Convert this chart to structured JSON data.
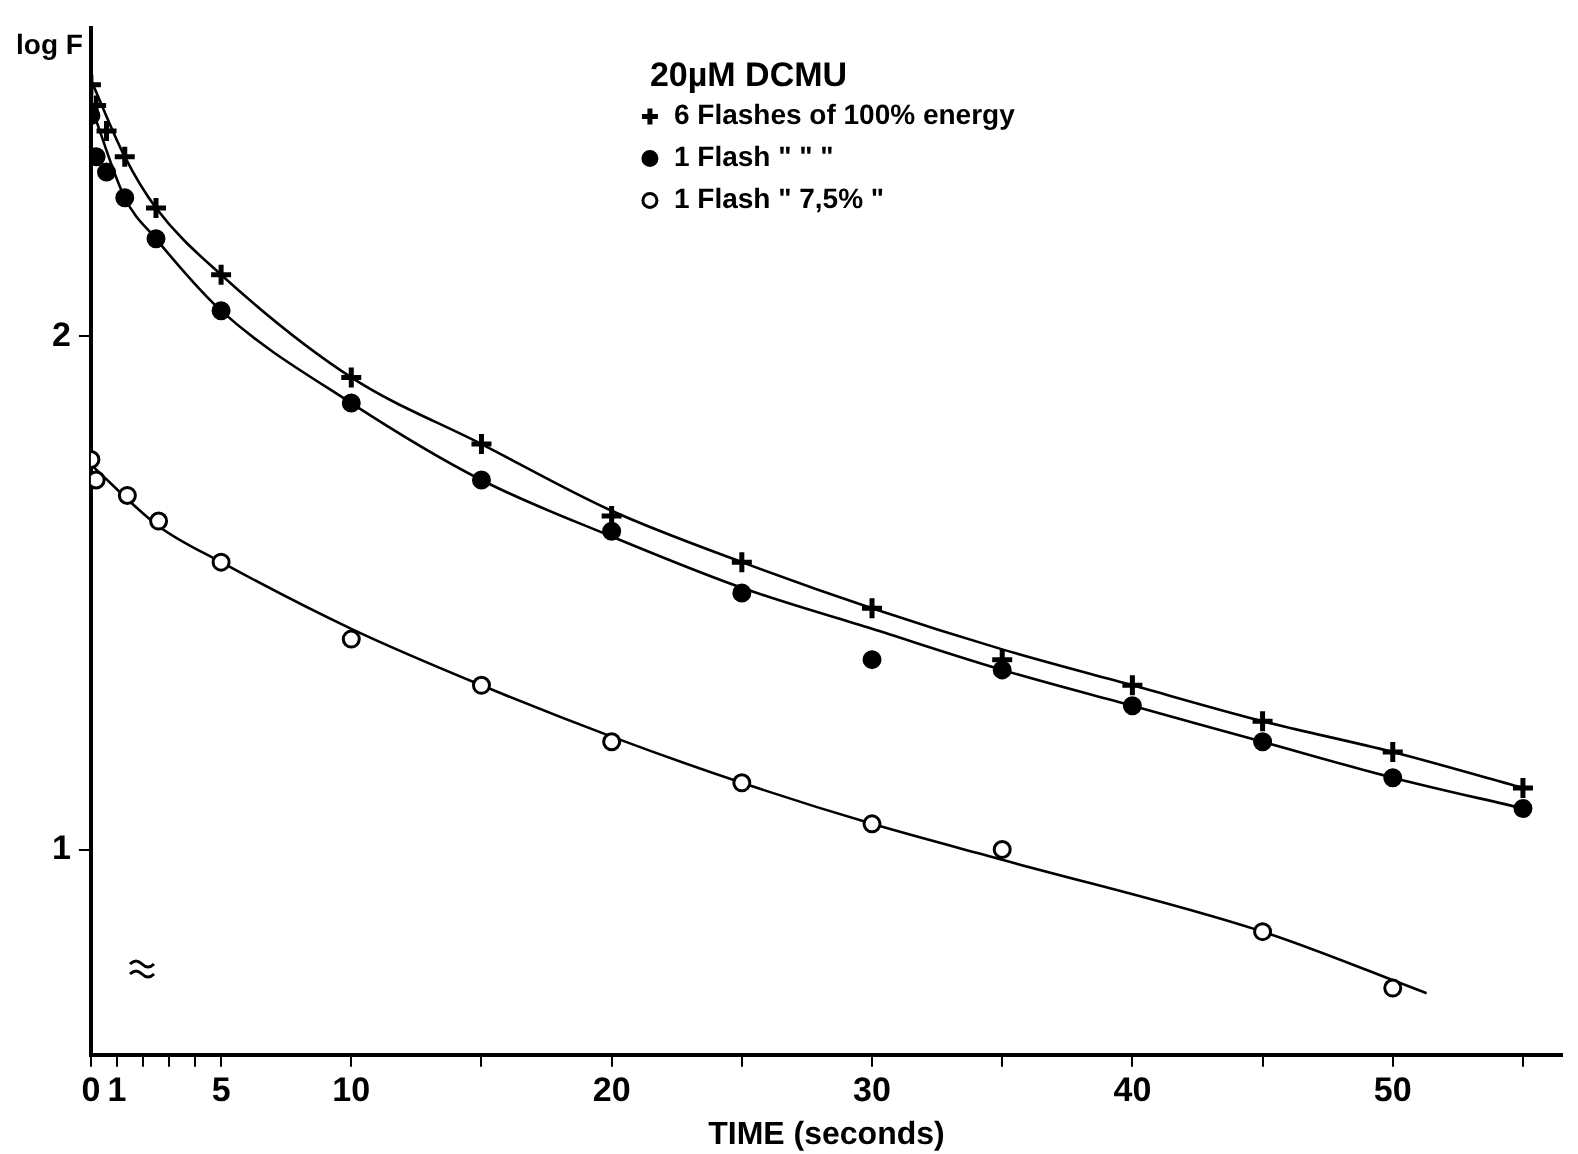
{
  "chart_data": {
    "type": "scatter",
    "xlabel": "TIME (seconds)",
    "ylabel": "log F",
    "legend_title": "20µM DCMU",
    "legend": "top right",
    "grid": false,
    "xlim": [
      0,
      56.5
    ],
    "xticks": [
      0,
      1,
      {
        "value": 2,
        "label": null
      },
      {
        "value": 3,
        "label": null
      },
      {
        "value": 4,
        "label": null
      },
      5,
      10,
      {
        "value": 15,
        "label": null
      },
      20,
      {
        "value": 25,
        "label": null
      },
      30,
      {
        "value": 35,
        "label": null
      },
      40,
      {
        "value": 45,
        "label": null
      },
      50,
      {
        "value": 55,
        "label": null
      }
    ],
    "ylim": [
      0.6,
      2.6
    ],
    "yticks": [
      1,
      2
    ],
    "series": [
      {
        "name": "6 Flashes of 100% energy",
        "color": "#000000",
        "marker": "cross",
        "x": [
          0,
          0.2,
          0.6,
          1.3,
          2.5,
          5,
          10,
          15,
          20,
          25,
          30,
          35,
          40,
          45,
          50,
          55
        ],
        "values": [
          2.49,
          2.45,
          2.4,
          2.35,
          2.25,
          2.12,
          1.92,
          1.79,
          1.65,
          1.56,
          1.47,
          1.37,
          1.32,
          1.25,
          1.19,
          1.12
        ]
      },
      {
        "name": "1 Flash \" \" \"",
        "color": "#000000",
        "marker": "circle",
        "x": [
          0,
          0.2,
          0.6,
          1.3,
          2.5,
          5,
          10,
          15,
          20,
          25,
          30,
          35,
          40,
          45,
          50,
          55
        ],
        "values": [
          2.43,
          2.35,
          2.32,
          2.27,
          2.19,
          2.05,
          1.87,
          1.72,
          1.62,
          1.5,
          1.37,
          1.35,
          1.28,
          1.21,
          1.14,
          1.08
        ]
      },
      {
        "name": "1 Flash \" 7,5% \"",
        "color": "#ffffff",
        "marker": "circle",
        "x": [
          0,
          0.2,
          1.4,
          2.6,
          5,
          10,
          15,
          20,
          25,
          30,
          35,
          45,
          50
        ],
        "values": [
          1.76,
          1.72,
          1.69,
          1.64,
          1.56,
          1.41,
          1.32,
          1.21,
          1.13,
          1.05,
          1.0,
          0.84,
          0.73
        ]
      },
      {
        "type": "line",
        "color": "#000000",
        "marker": "none",
        "x": [
          0,
          1.3,
          2.5,
          5,
          10,
          15,
          20,
          25,
          30,
          35,
          40,
          45,
          50,
          55
        ],
        "values": [
          2.5,
          2.35,
          2.25,
          2.12,
          1.92,
          1.79,
          1.66,
          1.56,
          1.47,
          1.39,
          1.32,
          1.25,
          1.19,
          1.12
        ]
      },
      {
        "type": "line",
        "color": "#000000",
        "marker": "none",
        "x": [
          0,
          1.3,
          2.5,
          5,
          10,
          15,
          20,
          25,
          30,
          35,
          40,
          45,
          50,
          55
        ],
        "values": [
          2.45,
          2.27,
          2.19,
          2.05,
          1.87,
          1.72,
          1.61,
          1.51,
          1.43,
          1.35,
          1.28,
          1.21,
          1.14,
          1.08
        ]
      },
      {
        "type": "line",
        "color": "#000000",
        "marker": "none",
        "x": [
          0,
          2.6,
          5,
          10,
          15,
          20,
          25,
          30,
          35,
          45,
          51.3
        ],
        "values": [
          1.75,
          1.63,
          1.56,
          1.43,
          1.32,
          1.22,
          1.13,
          1.05,
          0.98,
          0.84,
          0.72
        ]
      }
    ]
  }
}
